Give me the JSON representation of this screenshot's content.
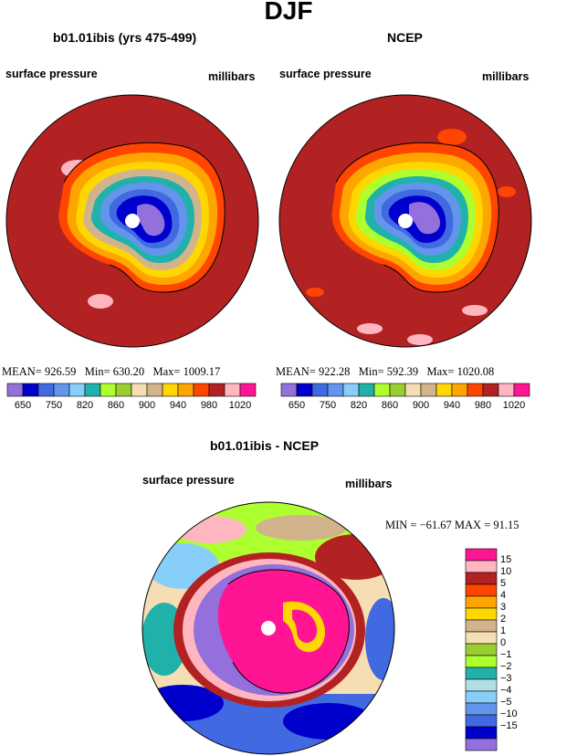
{
  "figure": {
    "title": "DJF"
  },
  "panels": {
    "model": {
      "title": "b01.01ibis (yrs 475-499)",
      "left_label": "surface pressure",
      "right_label": "millibars",
      "stats": {
        "mean_label": "MEAN=",
        "mean": "926.59",
        "min_label": "Min=",
        "min": "630.20",
        "max_label": "Max=",
        "max": "1009.17"
      }
    },
    "obs": {
      "title": "NCEP",
      "left_label": "surface pressure",
      "right_label": "millibars",
      "stats": {
        "mean_label": "MEAN=",
        "mean": "922.28",
        "min_label": "Min=",
        "min": "592.39",
        "max_label": "Max=",
        "max": "1020.08"
      }
    },
    "diff": {
      "title": "b01.01ibis - NCEP",
      "left_label": "surface pressure",
      "right_label": "millibars",
      "stats_text": "MIN = −61.67 MAX =   91.15"
    }
  },
  "colorbar_top": {
    "colors": [
      "#9370db",
      "#0000cd",
      "#4169e1",
      "#6495ed",
      "#87cefa",
      "#20b2aa",
      "#adff2f",
      "#9acd32",
      "#f5deb3",
      "#d2b48c",
      "#ffd700",
      "#ffa500",
      "#ff4500",
      "#b22222",
      "#ffb6c1",
      "#ff1493"
    ],
    "tick_labels": [
      "650",
      "750",
      "820",
      "860",
      "900",
      "940",
      "980",
      "1020"
    ]
  },
  "colorbar_diff": {
    "colors_top_to_bottom": [
      "#ff1493",
      "#ffb6c1",
      "#b22222",
      "#ff4500",
      "#ffa500",
      "#ffd700",
      "#d2b48c",
      "#f5deb3",
      "#9acd32",
      "#adff2f",
      "#20b2aa",
      "#b0e0e6",
      "#87cefa",
      "#6495ed",
      "#4169e1",
      "#0000cd",
      "#9370db"
    ],
    "tick_labels": [
      "15",
      "10",
      "5",
      "4",
      "3",
      "2",
      "1",
      "0",
      "−1",
      "−2",
      "−3",
      "−4",
      "−5",
      "−10",
      "−15"
    ]
  },
  "chart_data": [
    {
      "type": "heatmap",
      "title": "b01.01ibis (yrs 475-499)",
      "xlabel": "surface pressure",
      "ylabel": "millibars",
      "levels": [
        650,
        700,
        750,
        800,
        820,
        840,
        860,
        880,
        900,
        920,
        940,
        960,
        980,
        1000,
        1020
      ],
      "mean": 926.59,
      "min": 630.2,
      "max": 1009.17
    },
    {
      "type": "heatmap",
      "title": "NCEP",
      "xlabel": "surface pressure",
      "ylabel": "millibars",
      "levels": [
        650,
        700,
        750,
        800,
        820,
        840,
        860,
        880,
        900,
        920,
        940,
        960,
        980,
        1000,
        1020
      ],
      "mean": 922.28,
      "min": 592.39,
      "max": 1020.08
    },
    {
      "type": "heatmap",
      "title": "b01.01ibis - NCEP",
      "xlabel": "surface pressure",
      "ylabel": "millibars",
      "levels": [
        -15,
        -10,
        -5,
        -4,
        -3,
        -2,
        -1,
        0,
        1,
        2,
        3,
        4,
        5,
        10,
        15
      ],
      "min": -61.67,
      "max": 91.15
    }
  ]
}
